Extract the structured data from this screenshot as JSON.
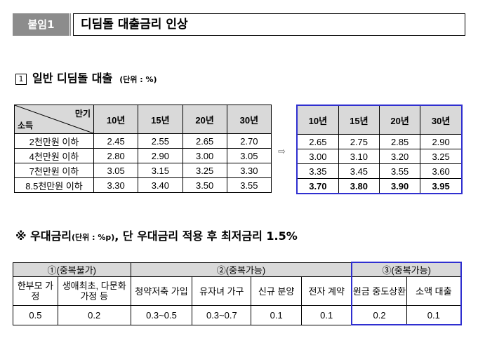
{
  "header": {
    "badge": "붙임1",
    "title": "디딤돌 대출금리 인상"
  },
  "section1": {
    "number": "1",
    "title": "일반 디딤돌 대출",
    "unit": "(단위 : %)"
  },
  "table_left": {
    "corner_top": "만기",
    "corner_bottom": "소득",
    "columns": [
      "10년",
      "15년",
      "20년",
      "30년"
    ],
    "rows": [
      {
        "label": "2천만원 이하",
        "values": [
          "2.45",
          "2.55",
          "2.65",
          "2.70"
        ]
      },
      {
        "label": "4천만원 이하",
        "values": [
          "2.80",
          "2.90",
          "3.00",
          "3.05"
        ]
      },
      {
        "label": "7천만원 이하",
        "values": [
          "3.05",
          "3.15",
          "3.25",
          "3.30"
        ]
      },
      {
        "label": "8.5천만원 이하",
        "values": [
          "3.30",
          "3.40",
          "3.50",
          "3.55"
        ]
      }
    ]
  },
  "arrow": "⇨",
  "table_right": {
    "columns": [
      "10년",
      "15년",
      "20년",
      "30년"
    ],
    "rows": [
      [
        "2.65",
        "2.75",
        "2.85",
        "2.90"
      ],
      [
        "3.00",
        "3.10",
        "3.20",
        "3.25"
      ],
      [
        "3.35",
        "3.45",
        "3.55",
        "3.60"
      ],
      [
        "3.70",
        "3.80",
        "3.90",
        "3.95"
      ]
    ]
  },
  "section2": {
    "prefix": "※ 우대금리",
    "unit": "(단위 : %p)",
    "text": ", 단 우대금리 적용 후 최저금리 1.5%"
  },
  "table_bottom": {
    "groups": [
      "①(중복불가)",
      "②(중복가능)",
      "③(중복가능)"
    ],
    "names": [
      "한부모 가정",
      "생애최초, 다문화가정 등",
      "청약저축 가입",
      "유자녀 가구",
      "신규 분양",
      "전자 계약",
      "원금 중도상환",
      "소액 대출"
    ],
    "values": [
      "0.5",
      "0.2",
      "0.3~0.5",
      "0.3~0.7",
      "0.1",
      "0.1",
      "0.2",
      "0.1"
    ]
  }
}
